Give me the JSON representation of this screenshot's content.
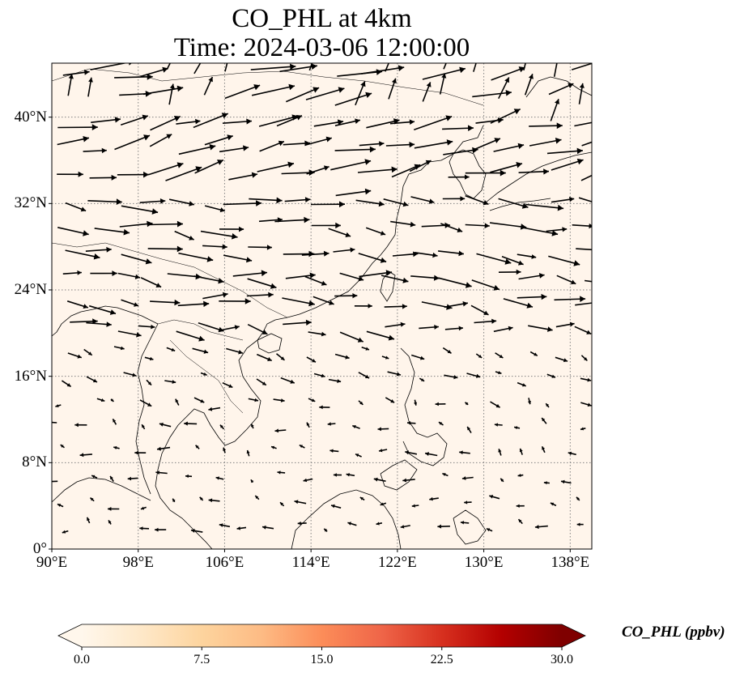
{
  "title": {
    "line1": "CO_PHL at 4km",
    "line2": "Time: 2024-03-06 12:00:00"
  },
  "map": {
    "projection": "PlateCarree",
    "lon_range": [
      90,
      140
    ],
    "lat_range": [
      0,
      45
    ],
    "gridlines": true,
    "gridline_style": "dotted gray",
    "lat_ticks": [
      {
        "value": 0,
        "label": "0°"
      },
      {
        "value": 8,
        "label": "8°N"
      },
      {
        "value": 16,
        "label": "16°N"
      },
      {
        "value": 24,
        "label": "24°N"
      },
      {
        "value": 32,
        "label": "32°N"
      },
      {
        "value": 40,
        "label": "40°N"
      }
    ],
    "lon_ticks": [
      {
        "value": 90,
        "label": "90°E"
      },
      {
        "value": 98,
        "label": "98°E"
      },
      {
        "value": 106,
        "label": "106°E"
      },
      {
        "value": 114,
        "label": "114°E"
      },
      {
        "value": 122,
        "label": "122°E"
      },
      {
        "value": 130,
        "label": "130°E"
      },
      {
        "value": 138,
        "label": "138°E"
      }
    ],
    "background_fill_color": "#fff5eb",
    "coastline_color": "#000000",
    "wind_vector_color": "#000000"
  },
  "colorbar": {
    "label": "CO_PHL (ppbv)",
    "colormap": "OrRd",
    "min": 0.0,
    "max": 30.0,
    "extend": "both",
    "ticks": [
      "0.0",
      "7.5",
      "15.0",
      "22.5",
      "30.0"
    ],
    "colors": [
      "#fff7ec",
      "#fee8c8",
      "#fdd49e",
      "#fdbb84",
      "#fc8d59",
      "#ef6548",
      "#d7301f",
      "#b30000",
      "#7f0000"
    ]
  }
}
